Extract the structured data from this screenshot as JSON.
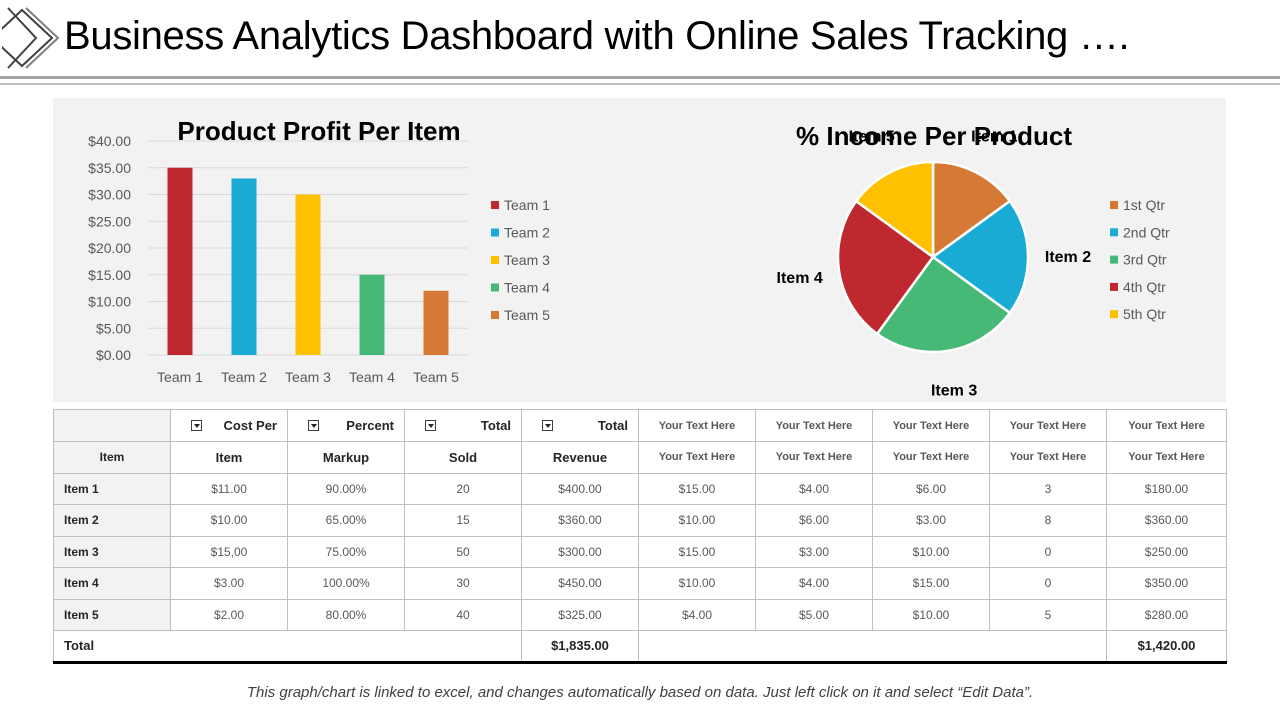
{
  "header": {
    "title": "Business Analytics Dashboard with Online Sales Tracking …."
  },
  "chart_data": [
    {
      "type": "bar",
      "title": "Product Profit Per Item",
      "categories": [
        "Team 1",
        "Team 2",
        "Team 3",
        "Team 4",
        "Team 5"
      ],
      "values": [
        35,
        33,
        30,
        15,
        12
      ],
      "colors": [
        "#c0282f",
        "#1aabd4",
        "#ffc000",
        "#47b977",
        "#d57a34"
      ],
      "legend": [
        "Team 1",
        "Team 2",
        "Team 3",
        "Team 4",
        "Team 5"
      ],
      "legend_position": "right",
      "ylim": [
        0,
        40
      ],
      "yticks": [
        "$0.00",
        "$5.00",
        "$10.00",
        "$15.00",
        "$20.00",
        "$25.00",
        "$30.00",
        "$35.00",
        "$40.00"
      ],
      "grid": true,
      "xlabel": "",
      "ylabel": ""
    },
    {
      "type": "pie",
      "title": "% Income Per Product",
      "labels": [
        "Item 1",
        "Item 2",
        "Item 3",
        "Item 4",
        "Item 5"
      ],
      "values": [
        15,
        20,
        25,
        25,
        15
      ],
      "colors": [
        "#d57a34",
        "#1aabd4",
        "#47b977",
        "#c0282f",
        "#ffc000"
      ],
      "legend": [
        "1st Qtr",
        "2nd Qtr",
        "3rd Qtr",
        "4th Qtr",
        "5th Qtr"
      ],
      "legend_position": "right"
    }
  ],
  "table": {
    "header_row1": [
      "",
      "Cost Per",
      "Percent",
      "Total",
      "Total",
      "Your Text Here",
      "Your Text Here",
      "Your Text Here",
      "Your Text Here",
      "Your Text Here"
    ],
    "header_row2": [
      "Item",
      "Item",
      "Markup",
      "Sold",
      "Revenue",
      "Your Text Here",
      "Your Text Here",
      "Your Text Here",
      "Your Text Here",
      "Your Text Here"
    ],
    "rows": [
      [
        "Item 1",
        "$11.00",
        "90.00%",
        "20",
        "$400.00",
        "$15.00",
        "$4.00",
        "$6.00",
        "3",
        "$180.00"
      ],
      [
        "Item 2",
        "$10.00",
        "65.00%",
        "15",
        "$360.00",
        "$10.00",
        "$6.00",
        "$3.00",
        "8",
        "$360.00"
      ],
      [
        "Item 3",
        "$15,00",
        "75.00%",
        "50",
        "$300.00",
        "$15.00",
        "$3.00",
        "$10.00",
        "0",
        "$250.00"
      ],
      [
        "Item 4",
        "$3.00",
        "100.00%",
        "30",
        "$450.00",
        "$10.00",
        "$4.00",
        "$15.00",
        "0",
        "$350.00"
      ],
      [
        "Item 5",
        "$2.00",
        "80.00%",
        "40",
        "$325.00",
        "$4.00",
        "$5.00",
        "$10.00",
        "5",
        "$280.00"
      ]
    ],
    "total_label": "Total",
    "total_revenue": "$1,835.00",
    "total_last": "$1,420.00"
  },
  "footer": {
    "note": "This graph/chart is linked to excel, and changes automatically based on data. Just left click on it and select “Edit Data”."
  }
}
